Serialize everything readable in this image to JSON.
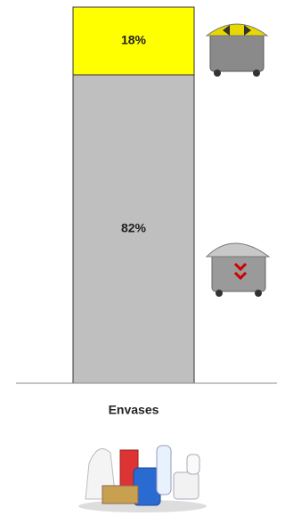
{
  "chart_data": {
    "type": "stacked-bar",
    "categories": [
      "Envases"
    ],
    "ylim": [
      0,
      100
    ],
    "series": [
      {
        "color": "#bfbfbf",
        "values": [
          82
        ],
        "value_labels": [
          "82%"
        ]
      },
      {
        "color": "#ffff00",
        "values": [
          18
        ],
        "value_labels": [
          "18%"
        ]
      }
    ]
  }
}
